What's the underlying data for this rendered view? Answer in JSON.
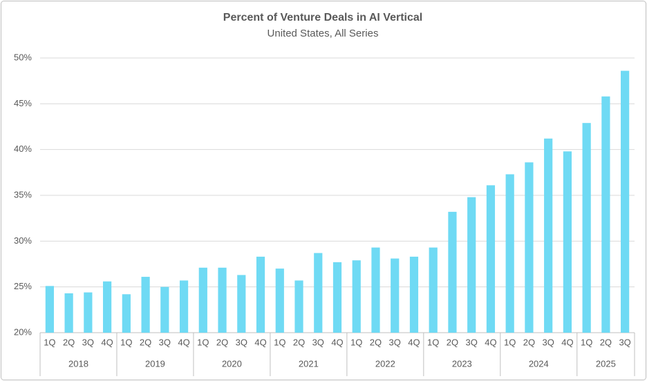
{
  "chart_data": {
    "type": "bar",
    "title": "Percent of Venture Deals in AI Vertical",
    "subtitle": "United States, All Series",
    "years": [
      {
        "label": "2018",
        "quarters": [
          "1Q",
          "2Q",
          "3Q",
          "4Q"
        ]
      },
      {
        "label": "2019",
        "quarters": [
          "1Q",
          "2Q",
          "3Q",
          "4Q"
        ]
      },
      {
        "label": "2020",
        "quarters": [
          "1Q",
          "2Q",
          "3Q",
          "4Q"
        ]
      },
      {
        "label": "2021",
        "quarters": [
          "1Q",
          "2Q",
          "3Q",
          "4Q"
        ]
      },
      {
        "label": "2022",
        "quarters": [
          "1Q",
          "2Q",
          "3Q",
          "4Q"
        ]
      },
      {
        "label": "2023",
        "quarters": [
          "1Q",
          "2Q",
          "3Q",
          "4Q"
        ]
      },
      {
        "label": "2024",
        "quarters": [
          "1Q",
          "2Q",
          "3Q",
          "4Q"
        ]
      },
      {
        "label": "2025",
        "quarters": [
          "1Q",
          "2Q",
          "3Q"
        ]
      }
    ],
    "values": [
      25.1,
      24.3,
      24.4,
      25.6,
      24.2,
      26.1,
      25.0,
      25.7,
      27.1,
      27.1,
      26.3,
      28.3,
      27.0,
      25.7,
      28.7,
      27.7,
      27.9,
      29.3,
      28.1,
      28.3,
      29.3,
      33.2,
      34.8,
      36.1,
      37.3,
      38.6,
      41.2,
      39.8,
      42.9,
      45.8,
      48.6
    ],
    "color": "#6fdaf4",
    "ylim": [
      20,
      50
    ],
    "yticks": [
      {
        "value": 20,
        "label": "20%"
      },
      {
        "value": 25,
        "label": "25%"
      },
      {
        "value": 30,
        "label": "30%"
      },
      {
        "value": 35,
        "label": "35%"
      },
      {
        "value": 40,
        "label": "40%"
      },
      {
        "value": 45,
        "label": "45%"
      },
      {
        "value": 50,
        "label": "50%"
      }
    ],
    "grid": true
  }
}
